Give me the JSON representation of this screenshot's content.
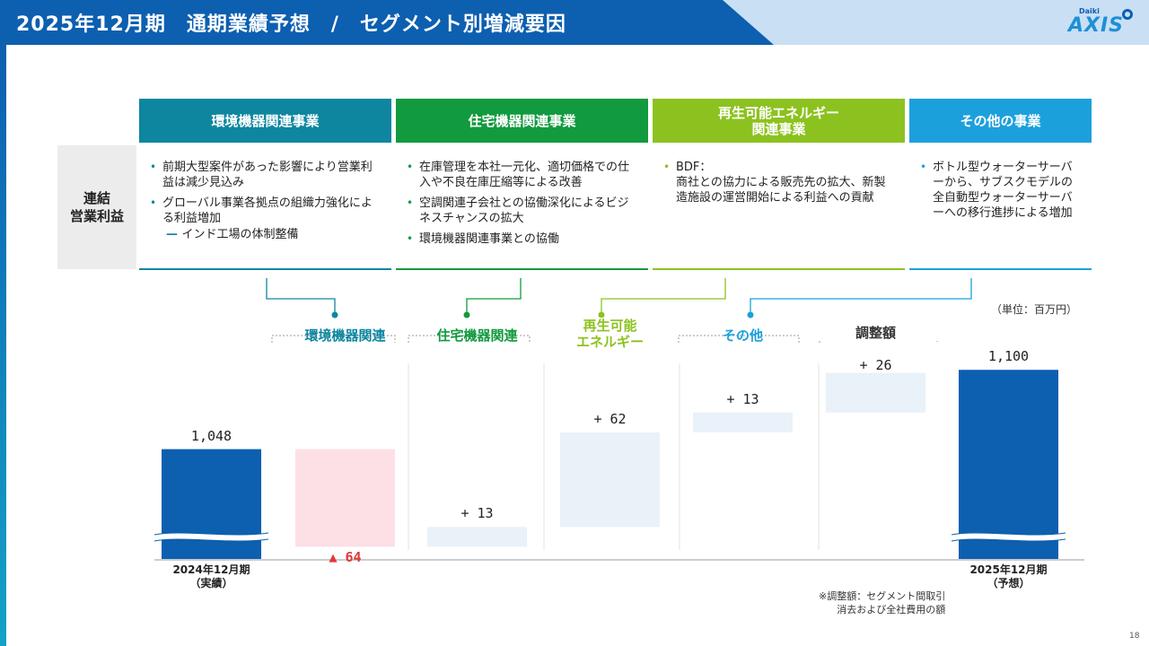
{
  "header": {
    "title": "2025年12月期　通期業績予想　/　セグメント別増減要因",
    "logo_small": "Daiki",
    "logo_main": "AXIS"
  },
  "table": {
    "row_header": [
      "連結",
      "営業利益"
    ],
    "segments": [
      {
        "title": [
          "環境機器関連事業"
        ],
        "color": "#0e86a0",
        "bullets": [
          "前期大型案件があった影響により営業利益は減少見込み",
          "グローバル事業各拠点の組織力強化による利益増加"
        ],
        "sub": "インド工場の体制整備"
      },
      {
        "title": [
          "住宅機器関連事業"
        ],
        "color": "#129a3e",
        "bullets": [
          "在庫管理を本社一元化、適切価格での仕入や不良在庫圧縮等による改善",
          "空調関連子会社との協働深化によるビジネスチャンスの拡大",
          "環境機器関連事業との協働"
        ],
        "sub": ""
      },
      {
        "title": [
          "再生可能エネルギー",
          "関連事業"
        ],
        "color": "#8cc21f",
        "bullets": [
          "BDF：\n商社との協力による販売先の拡大、新製造施設の運営開始による利益への貢献"
        ],
        "sub": ""
      },
      {
        "title": [
          "その他の事業"
        ],
        "color": "#1ca0dc",
        "bullets": [
          "ボトル型ウォーターサーバーから、サブスクモデルの全自動型ウォーターサーバーへの移行進捗による増加"
        ],
        "sub": ""
      }
    ]
  },
  "unit_label": "（単位：百万円）",
  "chart_data": {
    "type": "bar",
    "subtype": "waterfall",
    "categories": [
      "2024年12月期（実績）",
      "環境機器関連",
      "住宅機器関連",
      "再生可能エネルギー",
      "その他",
      "調整額",
      "2025年12月期（予想）"
    ],
    "values": [
      1048,
      -64,
      13,
      62,
      13,
      26,
      1100
    ],
    "value_labels": [
      "1,048",
      "▲ 64",
      "+ 13",
      "+ 62",
      "+ 13",
      "+ 26",
      "1,100"
    ],
    "category_labels": [
      {
        "lines": [
          "2024年12月期",
          "（実績）"
        ],
        "color": "#222222"
      },
      {
        "lines": [
          "環境機器関連"
        ],
        "color": "#0e86a0"
      },
      {
        "lines": [
          "住宅機器関連"
        ],
        "color": "#129a3e"
      },
      {
        "lines": [
          "再生可能",
          "エネルギー"
        ],
        "color": "#8cc21f"
      },
      {
        "lines": [
          "その他"
        ],
        "color": "#1ca0dc"
      },
      {
        "lines": [
          "調整額"
        ],
        "color": "#333333"
      },
      {
        "lines": [
          "2025年12月期",
          "（予想）"
        ],
        "color": "#222222"
      }
    ],
    "colors": {
      "total": "#0d5fb0",
      "increase": "#e9f1f9",
      "decrease": "#fde0e6"
    },
    "axis_broken": true,
    "grid": false
  },
  "footnote": [
    "※調整額：セグメント間取引",
    "消去および全社費用の額"
  ],
  "page_number": "18"
}
